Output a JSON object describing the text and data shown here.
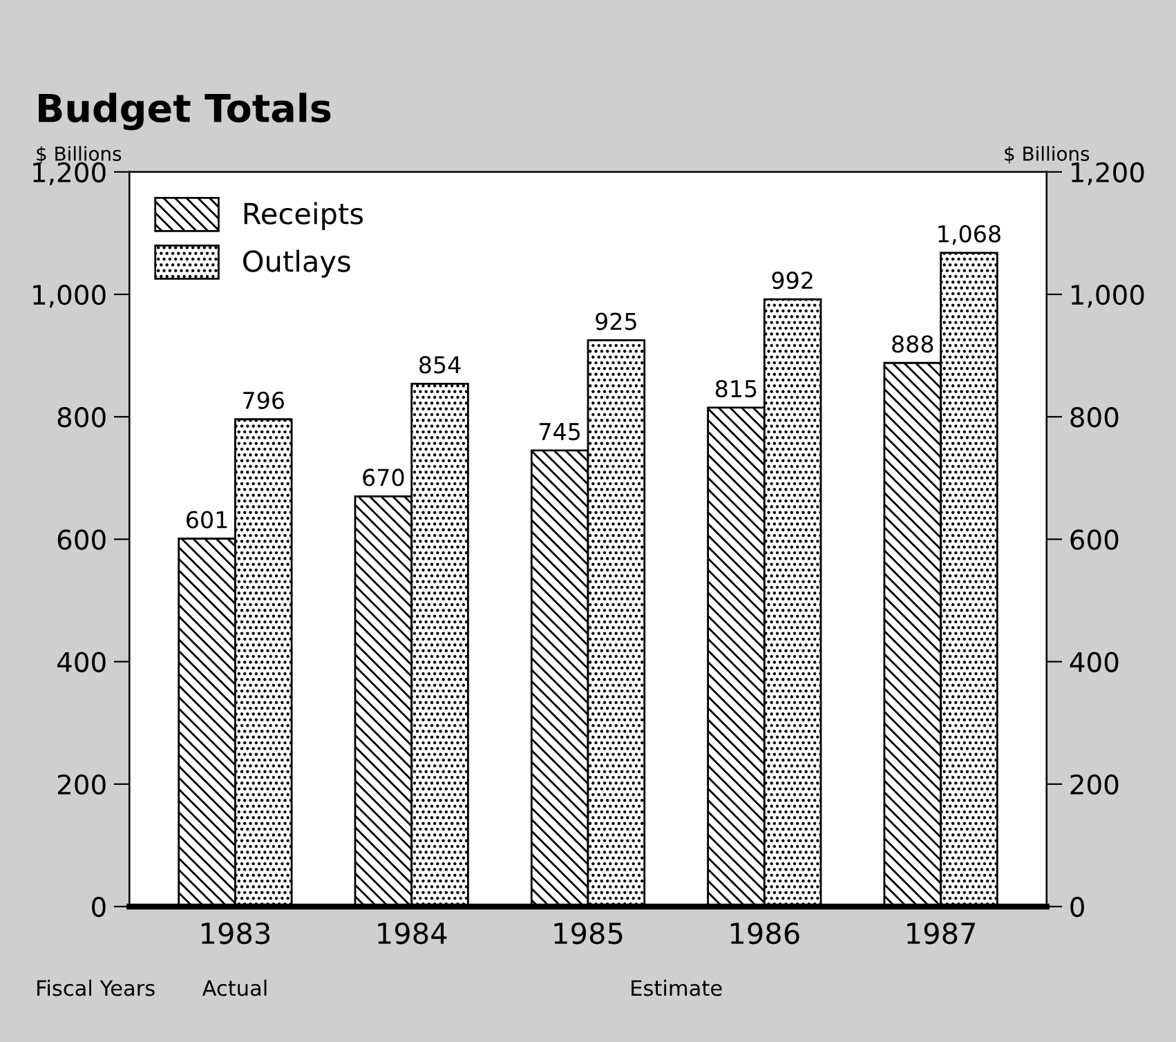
{
  "chart_data": {
    "type": "bar",
    "title": "Budget Totals",
    "ylabel": "$ Billions",
    "y2label": "$ Billions",
    "categories": [
      "1983",
      "1984",
      "1985",
      "1986",
      "1987"
    ],
    "series": [
      {
        "name": "Receipts",
        "color": "#000000",
        "values": [
          601,
          670,
          745,
          815,
          888
        ],
        "value_labels": [
          "601",
          "670",
          "745",
          "815",
          "888"
        ]
      },
      {
        "name": "Outlays",
        "color": "#000000",
        "values": [
          796,
          854,
          925,
          992,
          1068
        ],
        "value_labels": [
          "796",
          "854",
          "925",
          "992",
          "1,068"
        ]
      }
    ],
    "ylim": [
      0,
      1200
    ],
    "yticks": [
      0,
      200,
      400,
      600,
      800,
      {
        "value": 1000,
        "label": "1,000"
      },
      {
        "value": 1200,
        "label": "1,200"
      }
    ],
    "y2lim": [
      0,
      1200
    ],
    "y2ticks": [
      0,
      200,
      400,
      600,
      800,
      {
        "value": 1000,
        "label": "1,000"
      },
      {
        "value": 1200,
        "label": "1,200"
      }
    ],
    "annotations": [
      "Fiscal Years",
      "Actual",
      "Estimate"
    ],
    "legend": "top left",
    "grid": false
  }
}
